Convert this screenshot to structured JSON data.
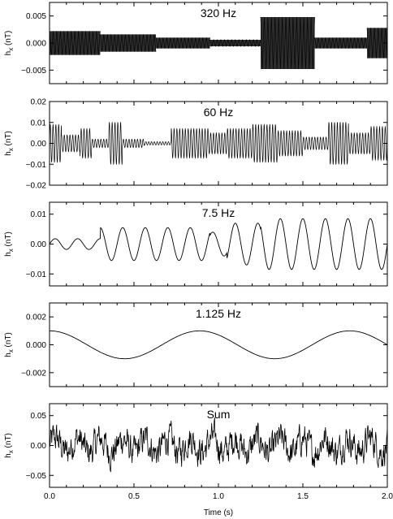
{
  "figure": {
    "xlabel": "Time (s)",
    "ylabel_main": "h",
    "ylabel_sub": "x",
    "ylabel_unit": " (nT)"
  },
  "chart_data": [
    {
      "type": "line",
      "title": "320 Hz",
      "xlabel": "Time (s)",
      "ylabel": "hx (nT)",
      "xlim": [
        0,
        2.0
      ],
      "ylim": [
        -0.0075,
        0.0075
      ],
      "yticks": [
        -0.005,
        0.0,
        0.005
      ],
      "ytick_labels": [
        "−0.005",
        "0.000",
        "0.005"
      ],
      "signal": {
        "frequency_hz": 320,
        "style": "dense",
        "segments": [
          {
            "t0": 0.0,
            "t1": 0.3,
            "amp": 0.0022
          },
          {
            "t0": 0.3,
            "t1": 0.63,
            "amp": 0.0016
          },
          {
            "t0": 0.63,
            "t1": 0.95,
            "amp": 0.001
          },
          {
            "t0": 0.95,
            "t1": 1.25,
            "amp": 0.0006
          },
          {
            "t0": 1.25,
            "t1": 1.57,
            "amp": 0.0048
          },
          {
            "t0": 1.57,
            "t1": 1.88,
            "amp": 0.001
          },
          {
            "t0": 1.88,
            "t1": 2.0,
            "amp": 0.0028
          }
        ]
      }
    },
    {
      "type": "line",
      "title": "60 Hz",
      "xlabel": "Time (s)",
      "ylabel": "hx (nT)",
      "xlim": [
        0,
        2.0
      ],
      "ylim": [
        -0.02,
        0.02
      ],
      "yticks": [
        -0.02,
        -0.01,
        0.0,
        0.01,
        0.02
      ],
      "ytick_labels": [
        "−0.02",
        "−0.01",
        "0.00",
        "0.01",
        "0.02"
      ],
      "signal": {
        "frequency_hz": 60,
        "style": "line",
        "segments": [
          {
            "t0": 0.0,
            "t1": 0.07,
            "amp": 0.009
          },
          {
            "t0": 0.07,
            "t1": 0.18,
            "amp": 0.004
          },
          {
            "t0": 0.18,
            "t1": 0.25,
            "amp": 0.007
          },
          {
            "t0": 0.25,
            "t1": 0.35,
            "amp": 0.002
          },
          {
            "t0": 0.35,
            "t1": 0.43,
            "amp": 0.01
          },
          {
            "t0": 0.43,
            "t1": 0.56,
            "amp": 0.002
          },
          {
            "t0": 0.56,
            "t1": 0.72,
            "amp": 0.0008
          },
          {
            "t0": 0.72,
            "t1": 0.94,
            "amp": 0.007
          },
          {
            "t0": 0.94,
            "t1": 1.05,
            "amp": 0.005
          },
          {
            "t0": 1.05,
            "t1": 1.2,
            "amp": 0.007
          },
          {
            "t0": 1.2,
            "t1": 1.35,
            "amp": 0.009
          },
          {
            "t0": 1.35,
            "t1": 1.5,
            "amp": 0.006
          },
          {
            "t0": 1.5,
            "t1": 1.65,
            "amp": 0.003
          },
          {
            "t0": 1.65,
            "t1": 1.77,
            "amp": 0.01
          },
          {
            "t0": 1.77,
            "t1": 1.9,
            "amp": 0.005
          },
          {
            "t0": 1.9,
            "t1": 2.0,
            "amp": 0.008
          }
        ]
      }
    },
    {
      "type": "line",
      "title": "7.5 Hz",
      "xlabel": "Time (s)",
      "ylabel": "hx (nT)",
      "xlim": [
        0,
        2.0
      ],
      "ylim": [
        -0.014,
        0.014
      ],
      "yticks": [
        -0.01,
        0.0,
        0.01
      ],
      "ytick_labels": [
        "−0.01",
        "0.00",
        "0.01"
      ],
      "signal": {
        "frequency_hz": 7.5,
        "style": "line",
        "segments": [
          {
            "t0": 0.0,
            "t1": 0.3,
            "amp": 0.0018
          },
          {
            "t0": 0.3,
            "t1": 0.95,
            "amp": 0.0055
          },
          {
            "t0": 0.95,
            "t1": 1.05,
            "amp": 0.004
          },
          {
            "t0": 1.05,
            "t1": 1.25,
            "amp": 0.007
          },
          {
            "t0": 1.25,
            "t1": 2.0,
            "amp": 0.0085
          }
        ]
      }
    },
    {
      "type": "line",
      "title": "1.125 Hz",
      "xlabel": "Time (s)",
      "ylabel": "hx (nT)",
      "xlim": [
        0,
        2.0
      ],
      "ylim": [
        -0.003,
        0.003
      ],
      "yticks": [
        -0.002,
        0.0,
        0.002
      ],
      "ytick_labels": [
        "−0.002",
        "0.000",
        "0.002"
      ],
      "signal": {
        "frequency_hz": 1.125,
        "style": "cosine",
        "amp": 0.001
      }
    },
    {
      "type": "line",
      "title": "Sum",
      "xlabel": "Time (s)",
      "ylabel": "hx (nT)",
      "xlim": [
        0,
        2.0
      ],
      "ylim": [
        -0.07,
        0.07
      ],
      "yticks": [
        -0.05,
        0.0,
        0.05
      ],
      "ytick_labels": [
        "−0.05",
        "0.00",
        "0.05"
      ],
      "xticks": [
        0.0,
        0.5,
        1.0,
        1.5,
        2.0
      ],
      "xtick_labels": [
        "0.0",
        "0.5",
        "1.0",
        "1.5",
        "2.0"
      ],
      "signal": {
        "style": "noise",
        "amp": 0.045
      }
    }
  ]
}
